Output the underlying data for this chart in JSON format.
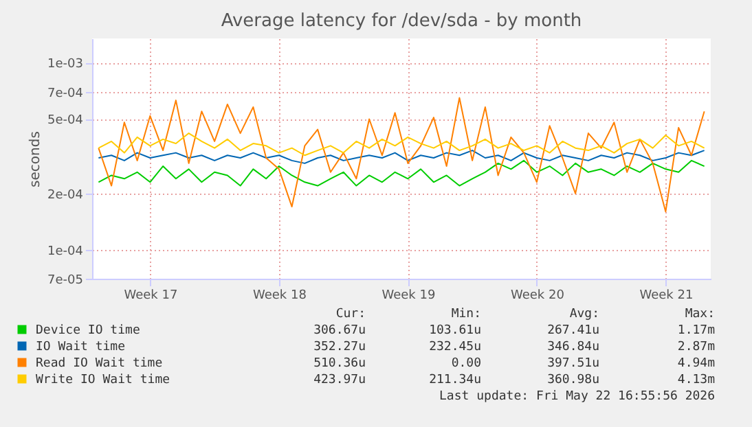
{
  "chart_data": {
    "type": "line",
    "title": "Average latency for /dev/sda - by month",
    "ylabel": "seconds",
    "log": "y",
    "ylim": [
      7e-05,
      0.00135
    ],
    "yticks": [
      {
        "value": 7e-05,
        "label": "7e-05"
      },
      {
        "value": 0.0001,
        "label": "1e-04"
      },
      {
        "value": 0.0002,
        "label": "2e-04"
      },
      {
        "value": 0.0005,
        "label": "5e-04"
      },
      {
        "value": 0.0007,
        "label": "7e-04"
      },
      {
        "value": 0.001,
        "label": "1e-03"
      }
    ],
    "grid": true,
    "legend": "bottom",
    "categories": [
      null,
      null,
      null,
      null,
      "Week 17",
      null,
      null,
      null,
      null,
      null,
      null,
      null,
      null,
      null,
      "Week 18",
      null,
      null,
      null,
      null,
      null,
      null,
      null,
      null,
      null,
      "Week 19",
      null,
      null,
      null,
      null,
      null,
      null,
      null,
      null,
      null,
      "Week 20",
      null,
      null,
      null,
      null,
      null,
      null,
      null,
      null,
      null,
      "Week 21",
      null,
      null,
      null
    ],
    "series": [
      {
        "name": "Device IO time",
        "color": "#00cc00",
        "values": [
          0.00023,
          0.00025,
          0.00024,
          0.00026,
          0.00023,
          0.00028,
          0.00024,
          0.00027,
          0.00023,
          0.00026,
          0.00025,
          0.00022,
          0.00027,
          0.00024,
          0.00028,
          0.00025,
          0.00023,
          0.00022,
          0.00024,
          0.00026,
          0.00022,
          0.00025,
          0.00023,
          0.00026,
          0.00024,
          0.00027,
          0.00023,
          0.00025,
          0.00022,
          0.00024,
          0.00026,
          0.00029,
          0.00027,
          0.0003,
          0.00026,
          0.00028,
          0.00025,
          0.00029,
          0.00026,
          0.00027,
          0.00025,
          0.00028,
          0.00026,
          0.00029,
          0.00027,
          0.00026,
          0.0003,
          0.00028
        ]
      },
      {
        "name": "IO Wait time",
        "color": "#0066b3",
        "values": [
          0.00031,
          0.00032,
          0.0003,
          0.00033,
          0.00031,
          0.00032,
          0.00033,
          0.00031,
          0.00032,
          0.0003,
          0.00032,
          0.00031,
          0.00033,
          0.00031,
          0.00032,
          0.0003,
          0.00029,
          0.00031,
          0.00032,
          0.0003,
          0.00031,
          0.00032,
          0.00031,
          0.00033,
          0.0003,
          0.00032,
          0.00031,
          0.00033,
          0.00032,
          0.00034,
          0.00031,
          0.00032,
          0.0003,
          0.00033,
          0.00031,
          0.0003,
          0.00032,
          0.00031,
          0.0003,
          0.00032,
          0.00031,
          0.00033,
          0.00032,
          0.0003,
          0.00031,
          0.00033,
          0.00032,
          0.00034
        ]
      },
      {
        "name": "Read IO Wait time",
        "color": "#ff8000",
        "values": [
          0.00035,
          0.00022,
          0.00048,
          0.0003,
          0.00052,
          0.00034,
          0.00063,
          0.00029,
          0.00055,
          0.00038,
          0.0006,
          0.00042,
          0.00058,
          0.00031,
          0.00027,
          0.00017,
          0.00036,
          0.00044,
          0.00026,
          0.00033,
          0.00024,
          0.0005,
          0.00032,
          0.00054,
          0.00029,
          0.00036,
          0.00051,
          0.00028,
          0.00065,
          0.0003,
          0.00058,
          0.00025,
          0.0004,
          0.00033,
          0.00023,
          0.00046,
          0.00031,
          0.0002,
          0.00042,
          0.00035,
          0.00048,
          0.00026,
          0.00039,
          0.00029,
          0.00016,
          0.00045,
          0.00032,
          0.00055
        ]
      },
      {
        "name": "Write IO Wait time",
        "color": "#ffcc00",
        "values": [
          0.00035,
          0.00038,
          0.00033,
          0.0004,
          0.00036,
          0.00039,
          0.00037,
          0.00042,
          0.00038,
          0.00035,
          0.00039,
          0.00034,
          0.00037,
          0.00036,
          0.00033,
          0.00035,
          0.00032,
          0.00034,
          0.00036,
          0.00033,
          0.00038,
          0.00035,
          0.00039,
          0.00036,
          0.0004,
          0.00037,
          0.00035,
          0.00038,
          0.00034,
          0.00036,
          0.00039,
          0.00035,
          0.00037,
          0.00034,
          0.00036,
          0.00033,
          0.00038,
          0.00035,
          0.00034,
          0.00036,
          0.00033,
          0.00037,
          0.00039,
          0.00035,
          0.00041,
          0.00036,
          0.00038,
          0.00035
        ]
      }
    ],
    "annotations": [
      "Cur:",
      "Min:",
      "Avg:",
      "Max:",
      "306.67u",
      "103.61u",
      "267.41u",
      "1.17m",
      "352.27u",
      "232.45u",
      "346.84u",
      "2.87m",
      "510.36u",
      "0.00",
      "397.51u",
      "4.94m",
      "423.97u",
      "211.34u",
      "360.98u",
      "4.13m",
      "Last update: Fri May 22 16:55:56 2026"
    ]
  }
}
